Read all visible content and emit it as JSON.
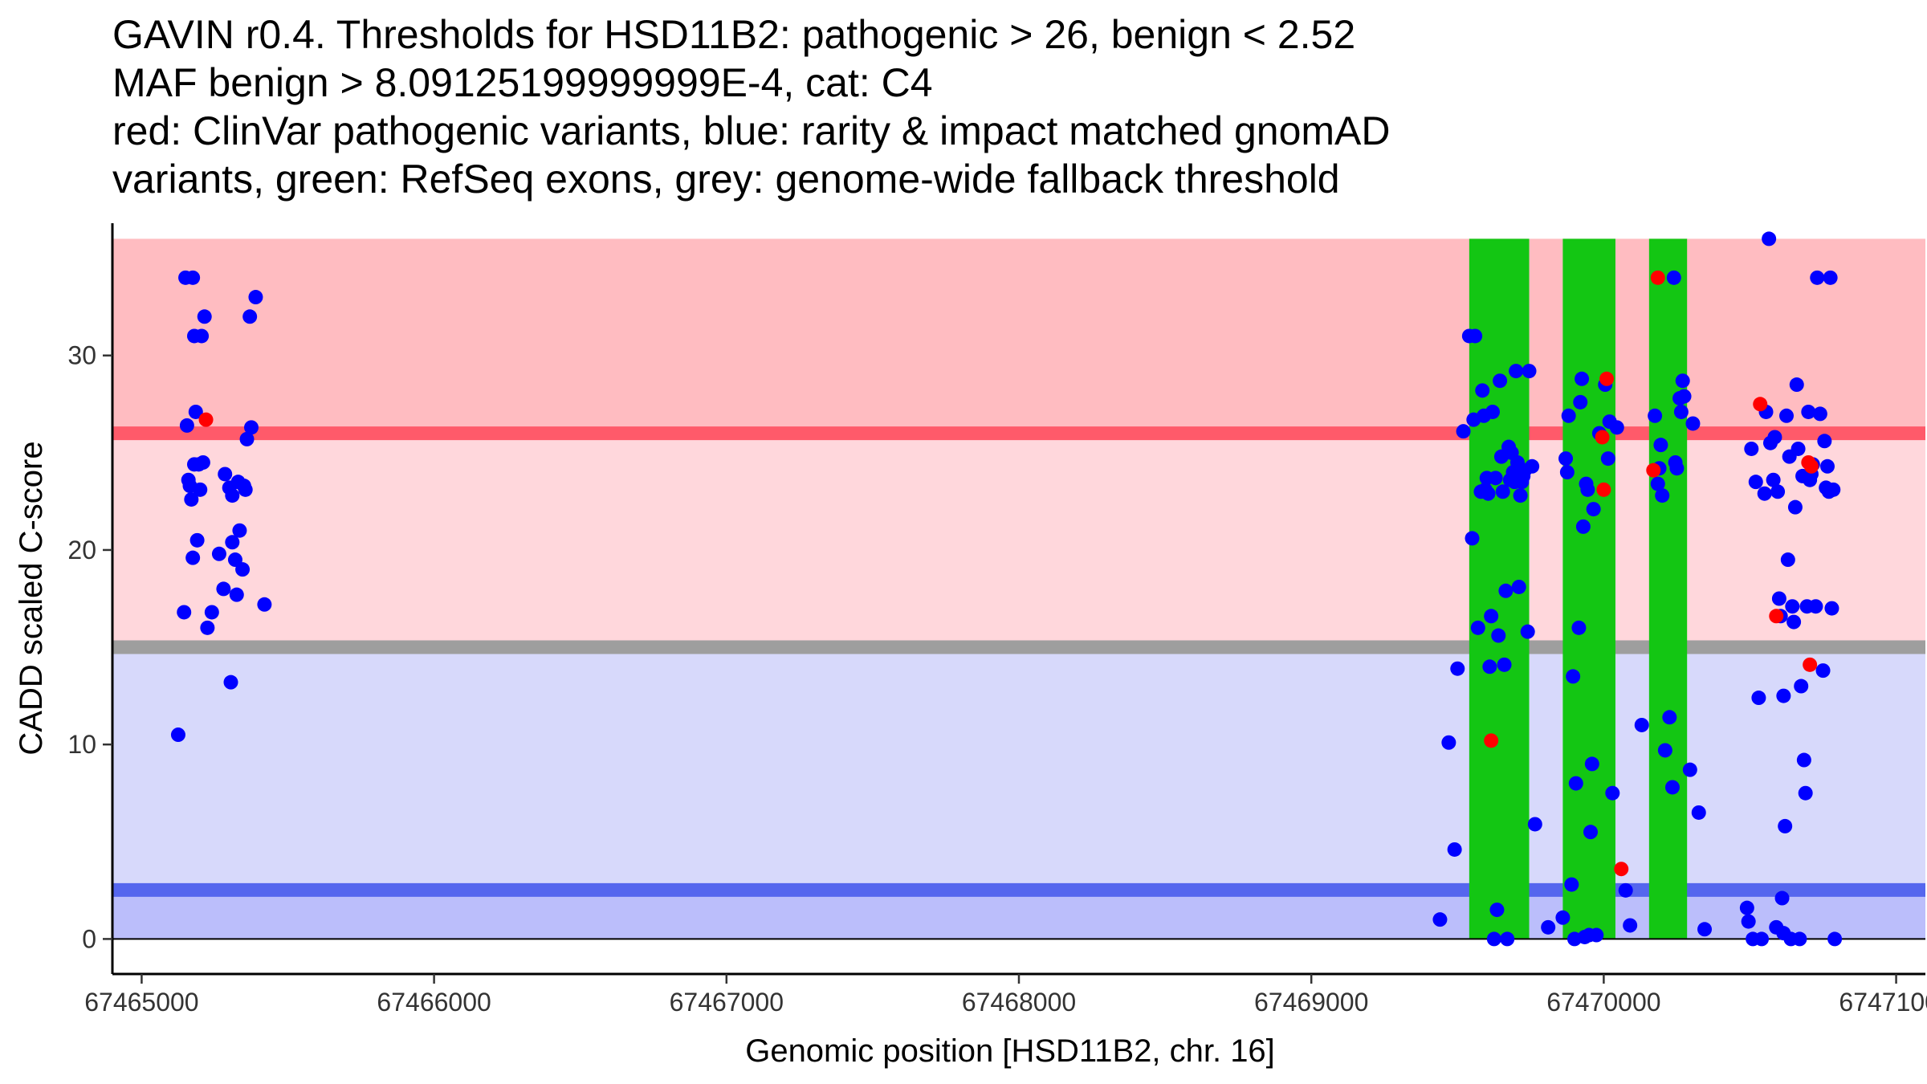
{
  "chart_data": {
    "type": "scatter",
    "title_lines": [
      "GAVIN r0.4. Thresholds for HSD11B2: pathogenic > 26, benign < 2.52",
      "MAF benign > 8.09125199999999E-4, cat: C4",
      "red: ClinVar pathogenic variants, blue: rarity & impact matched gnomAD",
      "variants, green: RefSeq exons, grey: genome-wide fallback threshold"
    ],
    "xlabel": "Genomic position [HSD11B2, chr. 16]",
    "ylabel": "CADD scaled C-score",
    "xlim": [
      67464900,
      67471100
    ],
    "ylim": [
      -1.8,
      36.8
    ],
    "x_ticks": [
      67465000,
      67466000,
      67467000,
      67468000,
      67469000,
      67470000,
      67471000
    ],
    "x_tick_labels": [
      "67465000",
      "67466000",
      "67467000",
      "67468000",
      "67469000",
      "67470000",
      "67471000"
    ],
    "y_ticks": [
      0,
      10,
      20,
      30
    ],
    "y_tick_labels": [
      "0",
      "10",
      "20",
      "30"
    ],
    "grid": false,
    "legend": "none",
    "thresholds": {
      "pathogenic": 26,
      "benign": 2.52,
      "fallback": 15,
      "y_max": 36
    },
    "bands": [
      {
        "name": "pathogenic-zone",
        "y0": 26,
        "y1": 36,
        "color": "#ffbcc1"
      },
      {
        "name": "intermediate-zone",
        "y0": 15,
        "y1": 26,
        "color": "#ffd7dc"
      },
      {
        "name": "fallback-benign-zone",
        "y0": 2.52,
        "y1": 15,
        "color": "#d7d9fb"
      },
      {
        "name": "benign-zone",
        "y0": 0,
        "y1": 2.52,
        "color": "#bbbefb"
      }
    ],
    "threshold_lines": [
      {
        "name": "pathogenic-threshold",
        "y": 26,
        "color": "#ff5a6a"
      },
      {
        "name": "fallback-threshold",
        "y": 15,
        "color": "#9e9e9e"
      },
      {
        "name": "benign-threshold",
        "y": 2.52,
        "color": "#5566ee"
      }
    ],
    "exons": [
      {
        "x0": 67469540,
        "x1": 67469745
      },
      {
        "x0": 67469860,
        "x1": 67470040
      },
      {
        "x0": 67470155,
        "x1": 67470285
      }
    ],
    "colors": {
      "exon": "#13c613",
      "gnomad": "#0000ff",
      "clinvar": "#ff0000",
      "axis": "#000000",
      "zero_line": "#000000"
    },
    "series": [
      {
        "name": "gnomAD",
        "color": "#0000ff",
        "points": [
          [
            67465125,
            10.5
          ],
          [
            67465145,
            16.8
          ],
          [
            67465150,
            34
          ],
          [
            67465155,
            26.4
          ],
          [
            67465160,
            23.6
          ],
          [
            67465165,
            23.3
          ],
          [
            67465170,
            22.6
          ],
          [
            67465175,
            34
          ],
          [
            67465175,
            19.6
          ],
          [
            67465180,
            24.4
          ],
          [
            67465180,
            31
          ],
          [
            67465185,
            27.1
          ],
          [
            67465190,
            20.5
          ],
          [
            67465195,
            24.4
          ],
          [
            67465200,
            23.1
          ],
          [
            67465205,
            31
          ],
          [
            67465210,
            24.5
          ],
          [
            67465215,
            32
          ],
          [
            67465225,
            16
          ],
          [
            67465240,
            16.8
          ],
          [
            67465265,
            19.8
          ],
          [
            67465280,
            18
          ],
          [
            67465285,
            23.9
          ],
          [
            67465300,
            23.2
          ],
          [
            67465305,
            13.2
          ],
          [
            67465310,
            22.8
          ],
          [
            67465310,
            20.4
          ],
          [
            67465320,
            19.5
          ],
          [
            67465325,
            17.7
          ],
          [
            67465330,
            23.5
          ],
          [
            67465335,
            21
          ],
          [
            67465345,
            19
          ],
          [
            67465350,
            23.3
          ],
          [
            67465355,
            23.1
          ],
          [
            67465360,
            25.7
          ],
          [
            67465370,
            32
          ],
          [
            67465375,
            26.3
          ],
          [
            67465390,
            33
          ],
          [
            67465420,
            17.2
          ],
          [
            67469440,
            1
          ],
          [
            67469470,
            10.1
          ],
          [
            67469490,
            4.6
          ],
          [
            67469500,
            13.9
          ],
          [
            67469520,
            26.1
          ],
          [
            67469540,
            31
          ],
          [
            67469550,
            20.6
          ],
          [
            67469555,
            26.7
          ],
          [
            67469560,
            31
          ],
          [
            67469570,
            16
          ],
          [
            67469580,
            23
          ],
          [
            67469585,
            28.2
          ],
          [
            67469590,
            26.9
          ],
          [
            67469595,
            23.1
          ],
          [
            67469600,
            23.7
          ],
          [
            67469605,
            22.9
          ],
          [
            67469610,
            14
          ],
          [
            67469615,
            16.6
          ],
          [
            67469620,
            27.1
          ],
          [
            67469625,
            0
          ],
          [
            67469630,
            23.7
          ],
          [
            67469635,
            1.5
          ],
          [
            67469640,
            15.6
          ],
          [
            67469645,
            28.7
          ],
          [
            67469650,
            24.8
          ],
          [
            67469655,
            23
          ],
          [
            67469660,
            14.1
          ],
          [
            67469665,
            17.9
          ],
          [
            67469670,
            0
          ],
          [
            67469675,
            25.3
          ],
          [
            67469680,
            23.6
          ],
          [
            67469685,
            25
          ],
          [
            67469690,
            24
          ],
          [
            67469695,
            23.5
          ],
          [
            67469700,
            29.2
          ],
          [
            67469705,
            24.5
          ],
          [
            67469710,
            18.1
          ],
          [
            67469715,
            22.8
          ],
          [
            67469720,
            23.5
          ],
          [
            67469725,
            23.8
          ],
          [
            67469730,
            24.1
          ],
          [
            67469740,
            15.8
          ],
          [
            67469745,
            29.2
          ],
          [
            67469755,
            24.3
          ],
          [
            67469765,
            5.9
          ],
          [
            67469810,
            0.6
          ],
          [
            67469860,
            1.1
          ],
          [
            67469870,
            24.7
          ],
          [
            67469875,
            24
          ],
          [
            67469880,
            26.9
          ],
          [
            67469890,
            2.8
          ],
          [
            67469895,
            13.5
          ],
          [
            67469900,
            0
          ],
          [
            67469905,
            8
          ],
          [
            67469915,
            16
          ],
          [
            67469920,
            27.6
          ],
          [
            67469925,
            28.8
          ],
          [
            67469930,
            21.2
          ],
          [
            67469935,
            0.1
          ],
          [
            67469940,
            23.4
          ],
          [
            67469945,
            23.1
          ],
          [
            67469950,
            0.2
          ],
          [
            67469955,
            5.5
          ],
          [
            67469960,
            9
          ],
          [
            67469965,
            22.1
          ],
          [
            67469975,
            0.2
          ],
          [
            67469985,
            26
          ],
          [
            67470005,
            28.5
          ],
          [
            67470015,
            24.7
          ],
          [
            67470020,
            26.6
          ],
          [
            67470030,
            7.5
          ],
          [
            67470045,
            26.3
          ],
          [
            67470075,
            2.5
          ],
          [
            67470090,
            0.7
          ],
          [
            67470130,
            11
          ],
          [
            67470175,
            26.9
          ],
          [
            67470185,
            23.4
          ],
          [
            67470190,
            24.2
          ],
          [
            67470195,
            25.4
          ],
          [
            67470200,
            22.8
          ],
          [
            67470210,
            9.7
          ],
          [
            67470225,
            11.4
          ],
          [
            67470235,
            7.8
          ],
          [
            67470240,
            34
          ],
          [
            67470245,
            24.5
          ],
          [
            67470250,
            24.2
          ],
          [
            67470260,
            27.8
          ],
          [
            67470265,
            27.1
          ],
          [
            67470270,
            28.7
          ],
          [
            67470275,
            27.9
          ],
          [
            67470295,
            8.7
          ],
          [
            67470305,
            26.5
          ],
          [
            67470325,
            6.5
          ],
          [
            67470345,
            0.5
          ],
          [
            67470490,
            1.6
          ],
          [
            67470495,
            0.9
          ],
          [
            67470505,
            25.2
          ],
          [
            67470510,
            0
          ],
          [
            67470520,
            23.5
          ],
          [
            67470530,
            12.4
          ],
          [
            67470540,
            0
          ],
          [
            67470550,
            22.9
          ],
          [
            67470555,
            27.1
          ],
          [
            67470565,
            36
          ],
          [
            67470570,
            25.5
          ],
          [
            67470580,
            23.6
          ],
          [
            67470585,
            25.8
          ],
          [
            67470590,
            0.6
          ],
          [
            67470595,
            23
          ],
          [
            67470600,
            17.5
          ],
          [
            67470605,
            16.6
          ],
          [
            67470610,
            2.1
          ],
          [
            67470615,
            0.3
          ],
          [
            67470615,
            12.5
          ],
          [
            67470620,
            5.8
          ],
          [
            67470625,
            26.9
          ],
          [
            67470630,
            19.5
          ],
          [
            67470635,
            24.8
          ],
          [
            67470640,
            0
          ],
          [
            67470645,
            17.1
          ],
          [
            67470650,
            16.3
          ],
          [
            67470655,
            22.2
          ],
          [
            67470660,
            28.5
          ],
          [
            67470665,
            25.2
          ],
          [
            67470670,
            0
          ],
          [
            67470675,
            13
          ],
          [
            67470680,
            23.8
          ],
          [
            67470685,
            9.2
          ],
          [
            67470690,
            7.5
          ],
          [
            67470695,
            17.1
          ],
          [
            67470700,
            27.1
          ],
          [
            67470705,
            23.6
          ],
          [
            67470710,
            23.9
          ],
          [
            67470715,
            24.4
          ],
          [
            67470725,
            17.1
          ],
          [
            67470730,
            34
          ],
          [
            67470740,
            27
          ],
          [
            67470750,
            13.8
          ],
          [
            67470755,
            25.6
          ],
          [
            67470760,
            23.2
          ],
          [
            67470765,
            24.3
          ],
          [
            67470770,
            23
          ],
          [
            67470775,
            34
          ],
          [
            67470780,
            17
          ],
          [
            67470785,
            23.1
          ],
          [
            67470790,
            0
          ]
        ]
      },
      {
        "name": "ClinVar",
        "color": "#ff0000",
        "points": [
          [
            67465220,
            26.7
          ],
          [
            67469615,
            10.2
          ],
          [
            67469995,
            25.8
          ],
          [
            67470000,
            23.1
          ],
          [
            67470010,
            28.8
          ],
          [
            67470060,
            3.6
          ],
          [
            67470170,
            24.1
          ],
          [
            67470185,
            34
          ],
          [
            67470535,
            27.5
          ],
          [
            67470590,
            16.6
          ],
          [
            67470700,
            24.5
          ],
          [
            67470705,
            14.1
          ],
          [
            67470710,
            24.3
          ]
        ]
      }
    ]
  }
}
